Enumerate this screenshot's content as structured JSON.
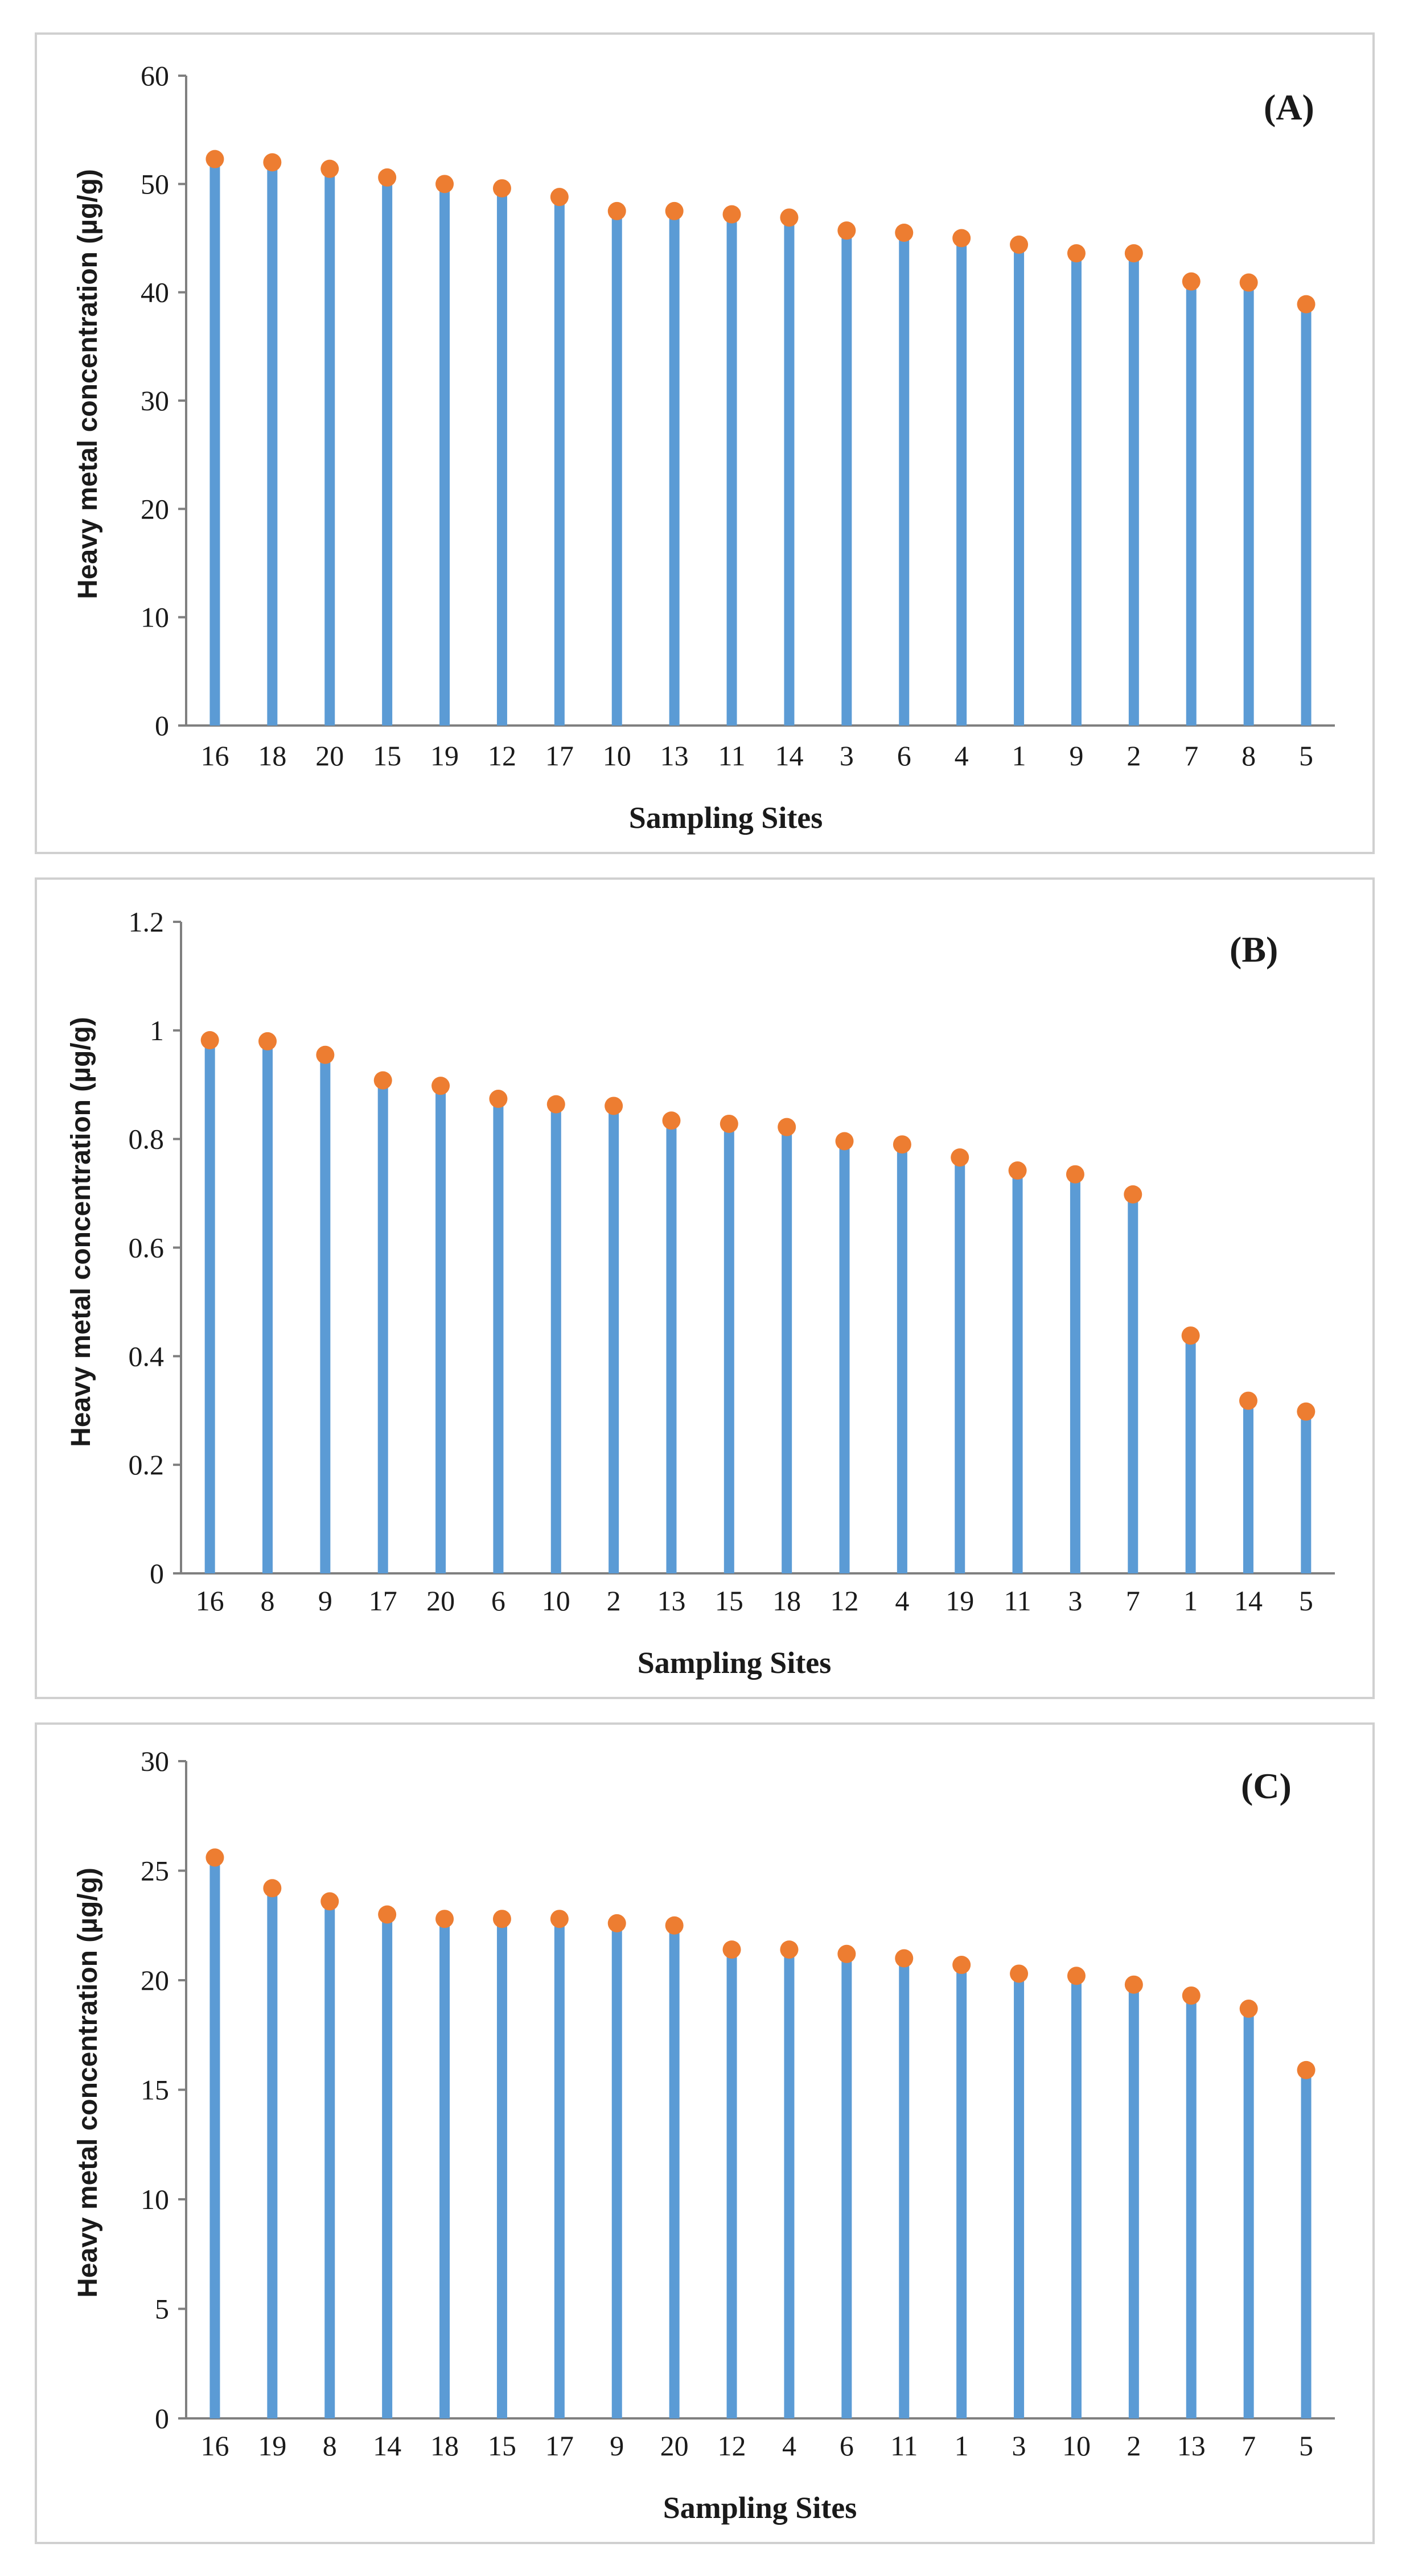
{
  "chart_data": [
    {
      "type": "bar",
      "panel_label": "(A)",
      "title": "",
      "xlabel": "Sampling Sites",
      "ylabel": "Heavy metal concentration  (µg/g)",
      "ylim": [
        0,
        60
      ],
      "yticks": [
        "0",
        "10",
        "20",
        "30",
        "40",
        "50",
        "60"
      ],
      "categories": [
        "16",
        "18",
        "20",
        "15",
        "19",
        "12",
        "17",
        "10",
        "13",
        "11",
        "14",
        "3",
        "6",
        "4",
        "1",
        "9",
        "2",
        "7",
        "8",
        "5"
      ],
      "values": [
        52.3,
        52.0,
        51.4,
        50.6,
        50.0,
        49.6,
        48.8,
        47.5,
        47.5,
        47.2,
        46.9,
        45.7,
        45.5,
        45.0,
        44.4,
        43.6,
        43.6,
        41.0,
        40.9,
        38.9
      ]
    },
    {
      "type": "bar",
      "panel_label": "(B)",
      "title": "",
      "xlabel": "Sampling Sites",
      "ylabel": "Heavy metal concentration  (µg/g)",
      "ylim": [
        0,
        1.2
      ],
      "yticks": [
        "0",
        "0.2",
        "0.4",
        "0.6",
        "0.8",
        "1",
        "1.2"
      ],
      "categories": [
        "16",
        "8",
        "9",
        "17",
        "20",
        "6",
        "10",
        "2",
        "13",
        "15",
        "18",
        "12",
        "4",
        "19",
        "11",
        "3",
        "7",
        "1",
        "14",
        "5"
      ],
      "values": [
        0.982,
        0.98,
        0.955,
        0.908,
        0.898,
        0.874,
        0.864,
        0.861,
        0.834,
        0.828,
        0.822,
        0.796,
        0.79,
        0.766,
        0.742,
        0.735,
        0.698,
        0.438,
        0.318,
        0.298
      ]
    },
    {
      "type": "bar",
      "panel_label": "(C)",
      "title": "",
      "xlabel": "Sampling Sites",
      "ylabel": "Heavy metal concentration  (µg/g)",
      "ylim": [
        0,
        30
      ],
      "yticks": [
        "0",
        "5",
        "10",
        "15",
        "20",
        "25",
        "30"
      ],
      "categories": [
        "16",
        "19",
        "8",
        "14",
        "18",
        "15",
        "17",
        "9",
        "20",
        "12",
        "4",
        "6",
        "11",
        "1",
        "3",
        "10",
        "2",
        "13",
        "7",
        "5"
      ],
      "values": [
        25.6,
        24.2,
        23.6,
        23.0,
        22.8,
        22.8,
        22.8,
        22.6,
        22.5,
        21.4,
        21.4,
        21.2,
        21.0,
        20.7,
        20.3,
        20.2,
        19.8,
        19.3,
        18.7,
        15.9
      ]
    }
  ],
  "colors": {
    "stem": "#5b9bd5",
    "marker": "#ed7d31",
    "axis": "#7f7f7f"
  }
}
